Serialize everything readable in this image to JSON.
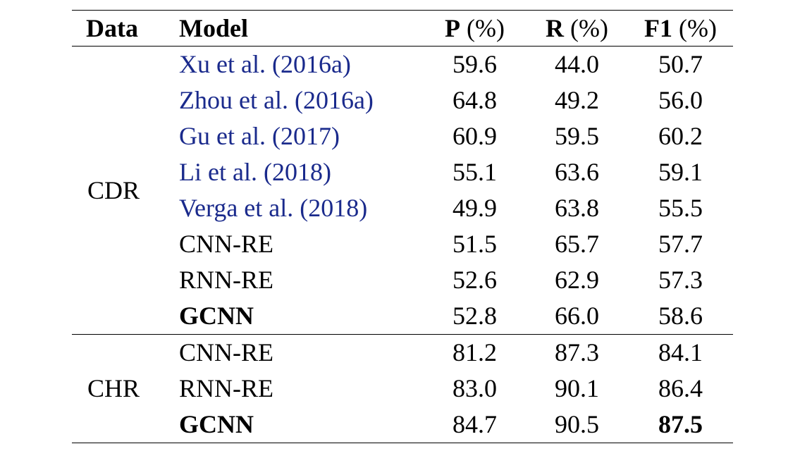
{
  "table": {
    "headers": {
      "data": "Data",
      "model": "Model",
      "p_bold": "P",
      "p_unit": " (%)",
      "r_bold": "R",
      "r_unit": " (%)",
      "f1_bold": "F1",
      "f1_unit": " (%)"
    },
    "groups": [
      {
        "dataset": "CDR",
        "rows": [
          {
            "model": "Xu et al. (2016a)",
            "p": "59.6",
            "r": "44.0",
            "f1": "50.7"
          },
          {
            "model": "Zhou et al. (2016a)",
            "p": "64.8",
            "r": "49.2",
            "f1": "56.0"
          },
          {
            "model": "Gu et al. (2017)",
            "p": "60.9",
            "r": "59.5",
            "f1": "60.2"
          },
          {
            "model": "Li et al. (2018)",
            "p": "55.1",
            "r": "63.6",
            "f1": "59.1"
          },
          {
            "model": "Verga et al. (2018)",
            "p": "49.9",
            "r": "63.8",
            "f1": "55.5"
          },
          {
            "model": "CNN-RE",
            "p": "51.5",
            "r": "65.7",
            "f1": "57.7"
          },
          {
            "model": "RNN-RE",
            "p": "52.6",
            "r": "62.9",
            "f1": "57.3"
          },
          {
            "model": "GCNN",
            "p": "52.8",
            "r": "66.0",
            "f1": "58.6"
          }
        ]
      },
      {
        "dataset": "CHR",
        "rows": [
          {
            "model": "CNN-RE",
            "p": "81.2",
            "r": "87.3",
            "f1": "84.1"
          },
          {
            "model": "RNN-RE",
            "p": "83.0",
            "r": "90.1",
            "f1": "86.4"
          },
          {
            "model": "GCNN",
            "p": "84.7",
            "r": "90.5",
            "f1": "87.5"
          }
        ]
      }
    ]
  }
}
